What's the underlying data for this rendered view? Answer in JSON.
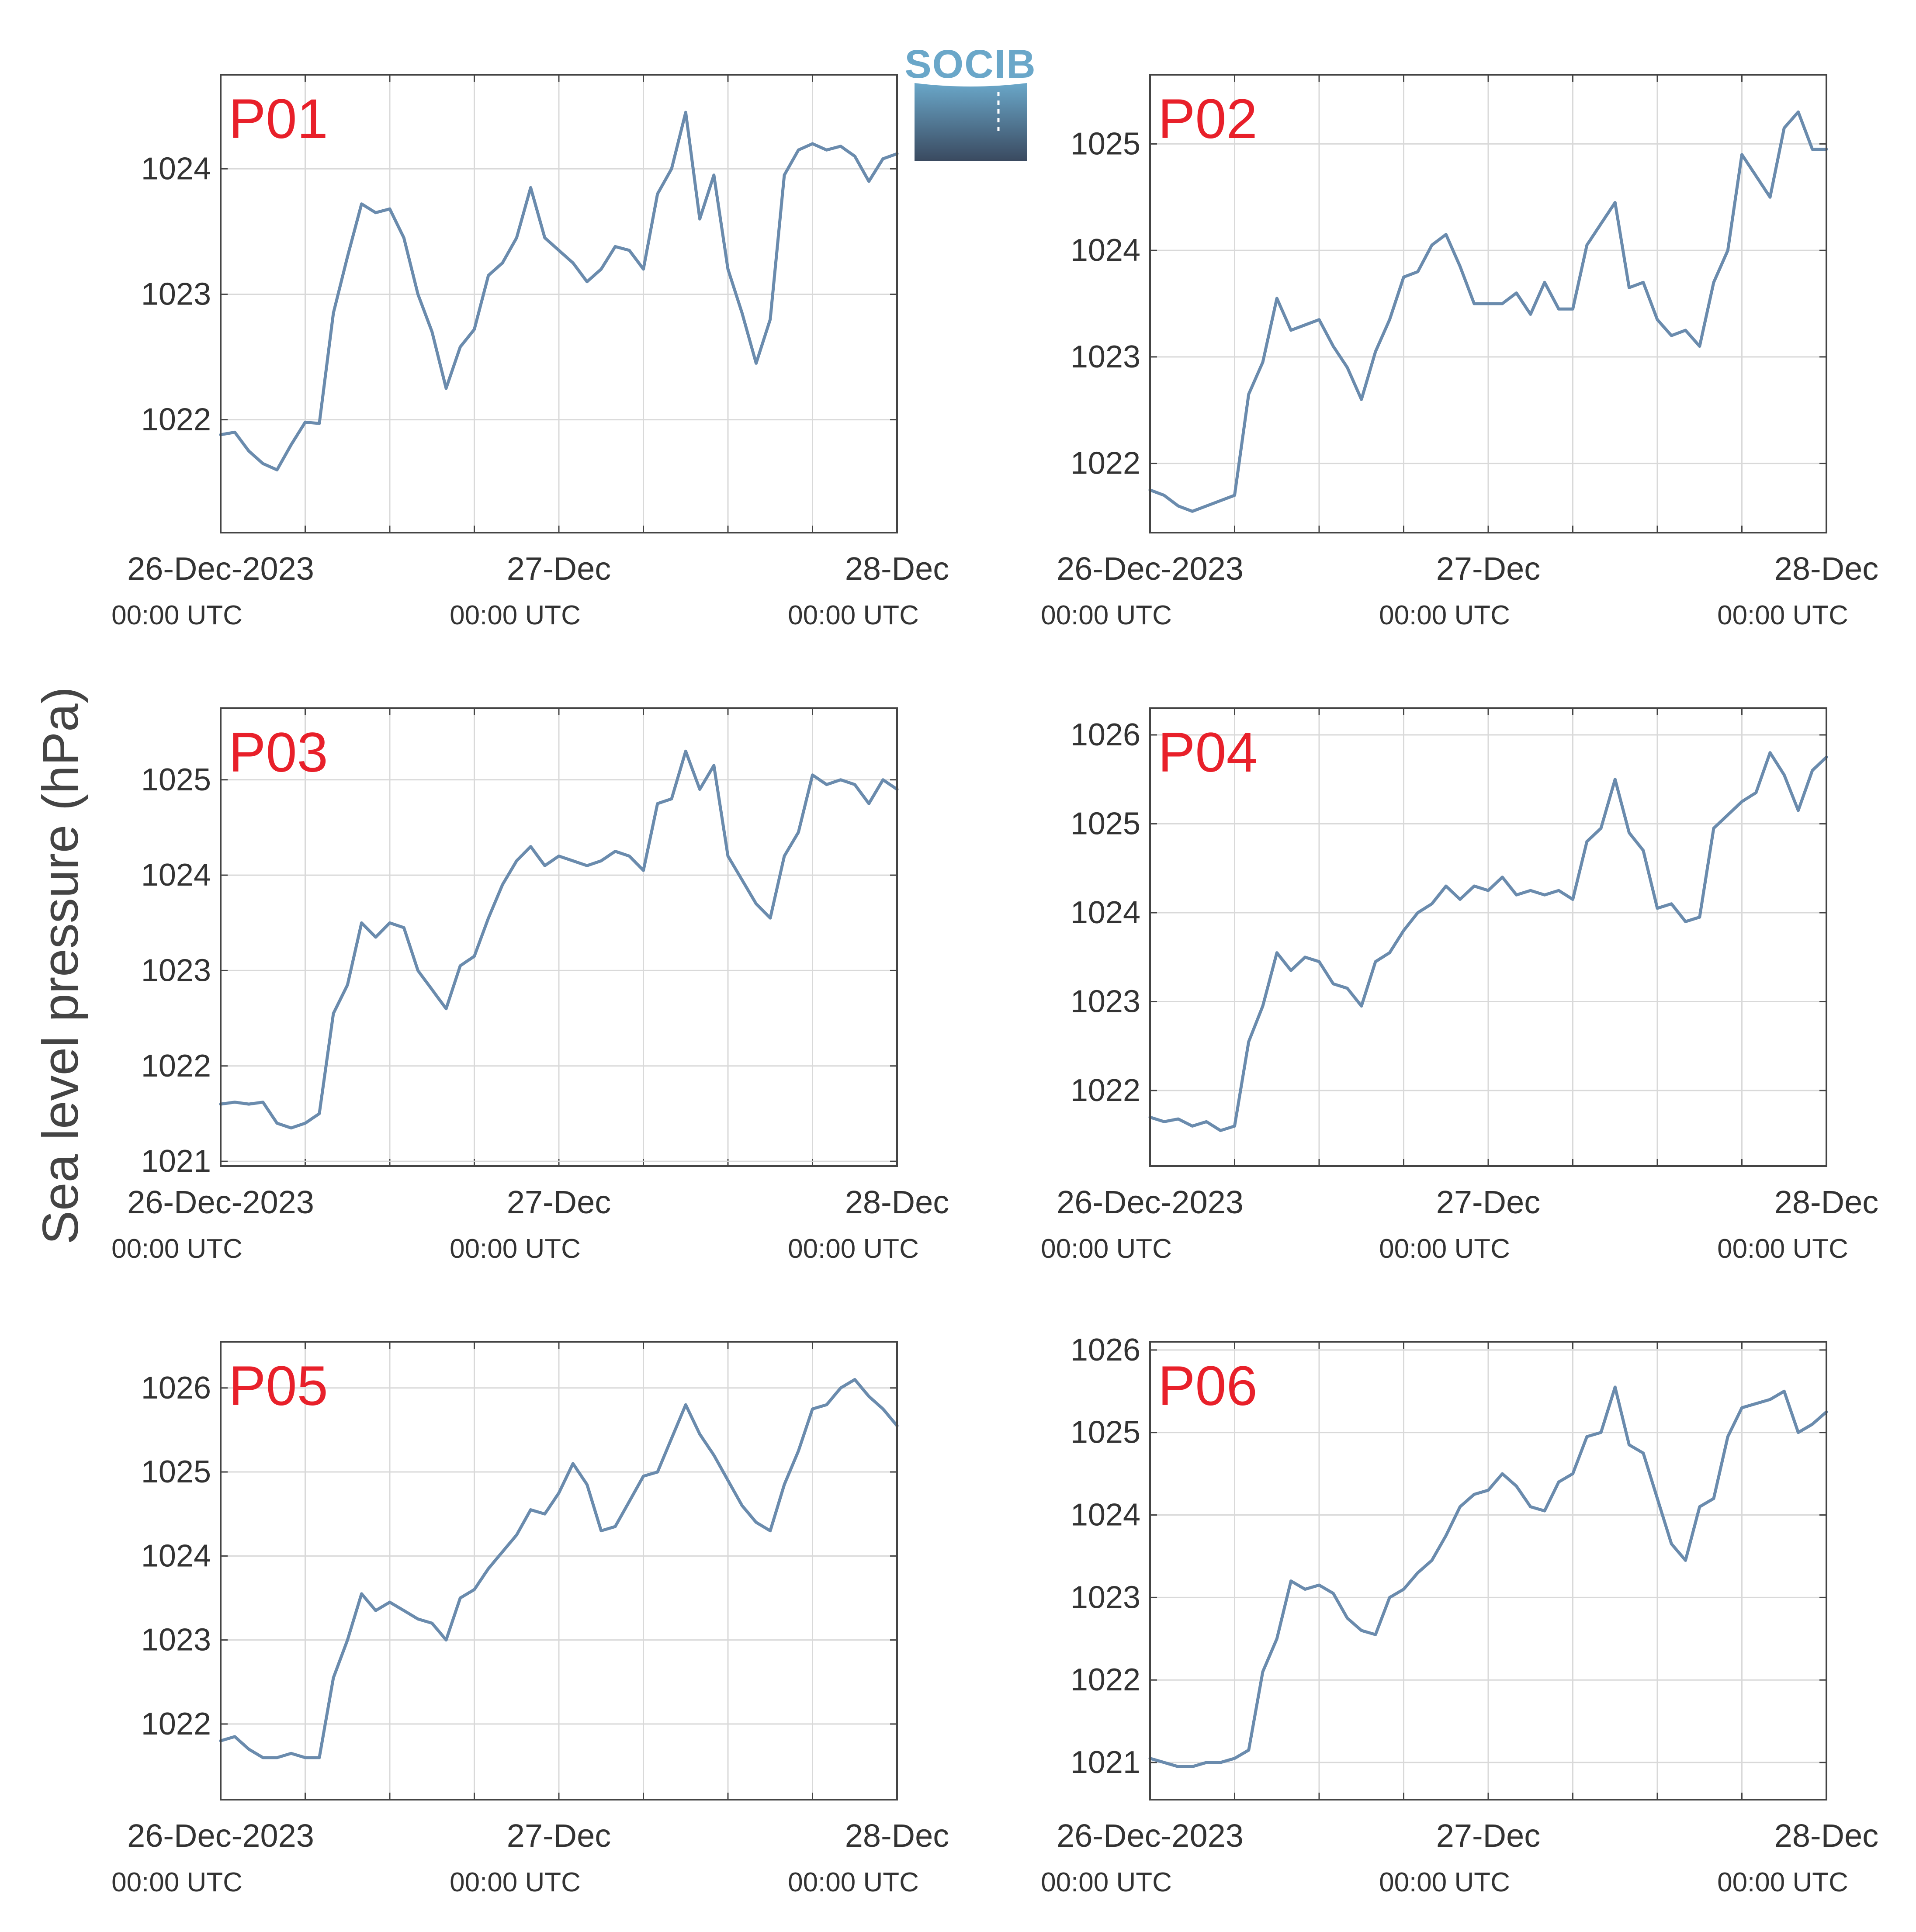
{
  "figure": {
    "ylabel": "Sea level pressure (hPa)",
    "logo_text": "SOCIB",
    "colors": {
      "line": "#6a8bad",
      "panel_label": "#e8202a",
      "grid": "#d9d9d9",
      "axis": "#444444",
      "logo_top": "#6aa7c9",
      "logo_bottom": "#3a4a60"
    }
  },
  "chart_data": [
    {
      "type": "line",
      "label": "P01",
      "ylim": [
        1021.1,
        1024.75
      ],
      "yticks": [
        1022,
        1023,
        1024
      ],
      "x_ticks": [
        {
          "date": "26-Dec-2023",
          "time": "00:00 UTC"
        },
        {
          "date": "27-Dec",
          "time": "00:00 UTC"
        },
        {
          "date": "28-Dec",
          "time": "00:00 UTC"
        }
      ],
      "x_hours": [
        0,
        1,
        2,
        3,
        4,
        5,
        6,
        7,
        8,
        9,
        10,
        11,
        12,
        13,
        14,
        15,
        16,
        17,
        18,
        19,
        20,
        21,
        22,
        23,
        24,
        25,
        26,
        27,
        28,
        29,
        30,
        31,
        32,
        33,
        34,
        35,
        36,
        37,
        38,
        39,
        40,
        41,
        42,
        43,
        44,
        45,
        46,
        47,
        48
      ],
      "values": [
        1021.88,
        1021.9,
        1021.75,
        1021.65,
        1021.6,
        1021.8,
        1021.98,
        1021.97,
        1022.85,
        1023.3,
        1023.72,
        1023.65,
        1023.68,
        1023.45,
        1023.0,
        1022.7,
        1022.25,
        1022.58,
        1022.72,
        1023.15,
        1023.25,
        1023.45,
        1023.85,
        1023.45,
        1023.35,
        1023.25,
        1023.1,
        1023.2,
        1023.38,
        1023.35,
        1023.2,
        1023.8,
        1024.0,
        1024.45,
        1023.6,
        1023.95,
        1023.2,
        1022.85,
        1022.45,
        1022.8,
        1023.95,
        1024.15,
        1024.2,
        1024.15,
        1024.18,
        1024.1,
        1023.9,
        1024.08,
        1024.12
      ]
    },
    {
      "type": "line",
      "label": "P02",
      "ylim": [
        1021.35,
        1025.65
      ],
      "yticks": [
        1022,
        1023,
        1024,
        1025
      ],
      "x_ticks": [
        {
          "date": "26-Dec-2023",
          "time": "00:00 UTC"
        },
        {
          "date": "27-Dec",
          "time": "00:00 UTC"
        },
        {
          "date": "28-Dec",
          "time": "00:00 UTC"
        }
      ],
      "x_hours": [
        0,
        1,
        2,
        3,
        4,
        5,
        6,
        7,
        8,
        9,
        10,
        11,
        12,
        13,
        14,
        15,
        16,
        17,
        18,
        19,
        20,
        21,
        22,
        23,
        24,
        25,
        26,
        27,
        28,
        29,
        30,
        31,
        32,
        33,
        34,
        35,
        36,
        37,
        38,
        39,
        40,
        41,
        42,
        43,
        44,
        45,
        46,
        47,
        48
      ],
      "values": [
        1021.75,
        1021.7,
        1021.6,
        1021.55,
        1021.6,
        1021.65,
        1021.7,
        1022.65,
        1022.95,
        1023.55,
        1023.25,
        1023.3,
        1023.35,
        1023.1,
        1022.9,
        1022.6,
        1023.05,
        1023.35,
        1023.75,
        1023.8,
        1024.05,
        1024.15,
        1023.85,
        1023.5,
        1023.5,
        1023.5,
        1023.6,
        1023.4,
        1023.7,
        1023.45,
        1023.45,
        1024.05,
        1024.25,
        1024.45,
        1023.65,
        1023.7,
        1023.35,
        1023.2,
        1023.25,
        1023.1,
        1023.7,
        1024.0,
        1024.9,
        1024.7,
        1024.5,
        1025.15,
        1025.3,
        1024.95,
        1024.95
      ]
    },
    {
      "type": "line",
      "label": "P03",
      "ylim": [
        1020.95,
        1025.75
      ],
      "yticks": [
        1021,
        1022,
        1023,
        1024,
        1025
      ],
      "x_ticks": [
        {
          "date": "26-Dec-2023",
          "time": "00:00 UTC"
        },
        {
          "date": "27-Dec",
          "time": "00:00 UTC"
        },
        {
          "date": "28-Dec",
          "time": "00:00 UTC"
        }
      ],
      "x_hours": [
        0,
        1,
        2,
        3,
        4,
        5,
        6,
        7,
        8,
        9,
        10,
        11,
        12,
        13,
        14,
        15,
        16,
        17,
        18,
        19,
        20,
        21,
        22,
        23,
        24,
        25,
        26,
        27,
        28,
        29,
        30,
        31,
        32,
        33,
        34,
        35,
        36,
        37,
        38,
        39,
        40,
        41,
        42,
        43,
        44,
        45,
        46,
        47,
        48
      ],
      "values": [
        1021.6,
        1021.62,
        1021.6,
        1021.62,
        1021.4,
        1021.35,
        1021.4,
        1021.5,
        1022.55,
        1022.85,
        1023.5,
        1023.35,
        1023.5,
        1023.45,
        1023.0,
        1022.8,
        1022.6,
        1023.05,
        1023.15,
        1023.55,
        1023.9,
        1024.15,
        1024.3,
        1024.1,
        1024.2,
        1024.15,
        1024.1,
        1024.15,
        1024.25,
        1024.2,
        1024.05,
        1024.75,
        1024.8,
        1025.3,
        1024.9,
        1025.15,
        1024.2,
        1023.95,
        1023.7,
        1023.55,
        1024.2,
        1024.45,
        1025.05,
        1024.95,
        1025.0,
        1024.95,
        1024.75,
        1025.0,
        1024.9
      ]
    },
    {
      "type": "line",
      "label": "P04",
      "ylim": [
        1021.15,
        1026.3
      ],
      "yticks": [
        1022,
        1023,
        1024,
        1025,
        1026
      ],
      "x_ticks": [
        {
          "date": "26-Dec-2023",
          "time": "00:00 UTC"
        },
        {
          "date": "27-Dec",
          "time": "00:00 UTC"
        },
        {
          "date": "28-Dec",
          "time": "00:00 UTC"
        }
      ],
      "x_hours": [
        0,
        1,
        2,
        3,
        4,
        5,
        6,
        7,
        8,
        9,
        10,
        11,
        12,
        13,
        14,
        15,
        16,
        17,
        18,
        19,
        20,
        21,
        22,
        23,
        24,
        25,
        26,
        27,
        28,
        29,
        30,
        31,
        32,
        33,
        34,
        35,
        36,
        37,
        38,
        39,
        40,
        41,
        42,
        43,
        44,
        45,
        46,
        47,
        48
      ],
      "values": [
        1021.7,
        1021.65,
        1021.68,
        1021.6,
        1021.65,
        1021.55,
        1021.6,
        1022.55,
        1022.95,
        1023.55,
        1023.35,
        1023.5,
        1023.45,
        1023.2,
        1023.15,
        1022.95,
        1023.45,
        1023.55,
        1023.8,
        1024.0,
        1024.1,
        1024.3,
        1024.15,
        1024.3,
        1024.25,
        1024.4,
        1024.2,
        1024.25,
        1024.2,
        1024.25,
        1024.15,
        1024.8,
        1024.95,
        1025.5,
        1024.9,
        1024.7,
        1024.05,
        1024.1,
        1023.9,
        1023.95,
        1024.95,
        1025.1,
        1025.25,
        1025.35,
        1025.8,
        1025.55,
        1025.15,
        1025.6,
        1025.75
      ]
    },
    {
      "type": "line",
      "label": "P05",
      "ylim": [
        1021.1,
        1026.55
      ],
      "yticks": [
        1022,
        1023,
        1024,
        1025,
        1026
      ],
      "x_ticks": [
        {
          "date": "26-Dec-2023",
          "time": "00:00 UTC"
        },
        {
          "date": "27-Dec",
          "time": "00:00 UTC"
        },
        {
          "date": "28-Dec",
          "time": "00:00 UTC"
        }
      ],
      "x_hours": [
        0,
        1,
        2,
        3,
        4,
        5,
        6,
        7,
        8,
        9,
        10,
        11,
        12,
        13,
        14,
        15,
        16,
        17,
        18,
        19,
        20,
        21,
        22,
        23,
        24,
        25,
        26,
        27,
        28,
        29,
        30,
        31,
        32,
        33,
        34,
        35,
        36,
        37,
        38,
        39,
        40,
        41,
        42,
        43,
        44,
        45,
        46,
        47,
        48
      ],
      "values": [
        1021.8,
        1021.85,
        1021.7,
        1021.6,
        1021.6,
        1021.65,
        1021.6,
        1021.6,
        1022.55,
        1023.0,
        1023.55,
        1023.35,
        1023.45,
        1023.35,
        1023.25,
        1023.2,
        1023.0,
        1023.5,
        1023.6,
        1023.85,
        1024.05,
        1024.25,
        1024.55,
        1024.5,
        1024.75,
        1025.1,
        1024.85,
        1024.3,
        1024.35,
        1024.65,
        1024.95,
        1025.0,
        1025.4,
        1025.8,
        1025.45,
        1025.2,
        1024.9,
        1024.6,
        1024.4,
        1024.3,
        1024.85,
        1025.25,
        1025.75,
        1025.8,
        1026.0,
        1026.1,
        1025.9,
        1025.75,
        1025.55
      ]
    },
    {
      "type": "line",
      "label": "P06",
      "ylim": [
        1020.55,
        1026.1
      ],
      "yticks": [
        1021,
        1022,
        1023,
        1024,
        1025,
        1026
      ],
      "x_ticks": [
        {
          "date": "26-Dec-2023",
          "time": "00:00 UTC"
        },
        {
          "date": "27-Dec",
          "time": "00:00 UTC"
        },
        {
          "date": "28-Dec",
          "time": "00:00 UTC"
        }
      ],
      "x_hours": [
        0,
        1,
        2,
        3,
        4,
        5,
        6,
        7,
        8,
        9,
        10,
        11,
        12,
        13,
        14,
        15,
        16,
        17,
        18,
        19,
        20,
        21,
        22,
        23,
        24,
        25,
        26,
        27,
        28,
        29,
        30,
        31,
        32,
        33,
        34,
        35,
        36,
        37,
        38,
        39,
        40,
        41,
        42,
        43,
        44,
        45,
        46,
        47,
        48
      ],
      "values": [
        1021.05,
        1021.0,
        1020.95,
        1020.95,
        1021.0,
        1021.0,
        1021.05,
        1021.15,
        1022.1,
        1022.5,
        1023.2,
        1023.1,
        1023.15,
        1023.05,
        1022.75,
        1022.6,
        1022.55,
        1023.0,
        1023.1,
        1023.3,
        1023.45,
        1023.75,
        1024.1,
        1024.25,
        1024.3,
        1024.5,
        1024.35,
        1024.1,
        1024.05,
        1024.4,
        1024.5,
        1024.95,
        1025.0,
        1025.55,
        1024.85,
        1024.75,
        1024.2,
        1023.65,
        1023.45,
        1024.1,
        1024.2,
        1024.95,
        1025.3,
        1025.35,
        1025.4,
        1025.5,
        1025.0,
        1025.1,
        1025.25
      ]
    }
  ]
}
